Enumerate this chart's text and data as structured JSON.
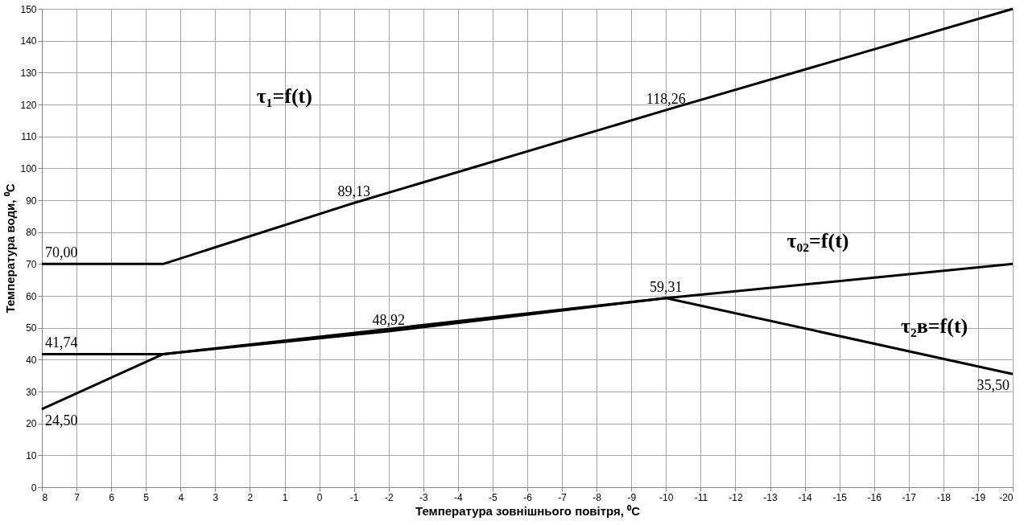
{
  "chart_data": {
    "type": "line",
    "xlabel": "Температура зовнішнього повітря, ⁰С",
    "ylabel": "Температура води, ⁰С",
    "xlim": [
      8,
      -20
    ],
    "xticks": [
      8,
      7,
      6,
      5,
      4,
      3,
      2,
      1,
      0,
      -1,
      -2,
      -3,
      -4,
      -5,
      -6,
      -7,
      -8,
      -9,
      -10,
      -11,
      -12,
      -13,
      -14,
      -15,
      -16,
      -17,
      -18,
      -19,
      -20
    ],
    "ylim": [
      0,
      150
    ],
    "yticks": [
      0,
      10,
      20,
      30,
      40,
      50,
      60,
      70,
      80,
      90,
      100,
      110,
      120,
      130,
      140,
      150
    ],
    "grid": true,
    "legend": false,
    "marker": "none",
    "line_style": "solid",
    "series": [
      {
        "color": "#000000",
        "x": [
          8,
          4.5,
          -1,
          -10,
          -20
        ],
        "values": [
          70,
          70,
          89.13,
          118.26,
          150
        ],
        "value_labels": [
          "70,00",
          null,
          "89,13",
          "118,26",
          null
        ]
      },
      {
        "color": "#000000",
        "x": [
          8,
          4.5,
          -2,
          -10,
          -20
        ],
        "values": [
          41.74,
          41.74,
          48.92,
          59.31,
          70
        ],
        "value_labels": [
          "41,74",
          null,
          "48,92",
          "59,31",
          null
        ]
      },
      {
        "color": "#000000",
        "x": [
          8,
          4.5,
          -10,
          -20
        ],
        "values": [
          24.5,
          41.74,
          59.31,
          35.5
        ],
        "value_labels": [
          "24,50",
          null,
          null,
          "35,50"
        ]
      }
    ],
    "annotations": [
      "τ₁=f(t)",
      "τ₀₂=f(t)",
      "τ₂в=f(t)"
    ]
  }
}
